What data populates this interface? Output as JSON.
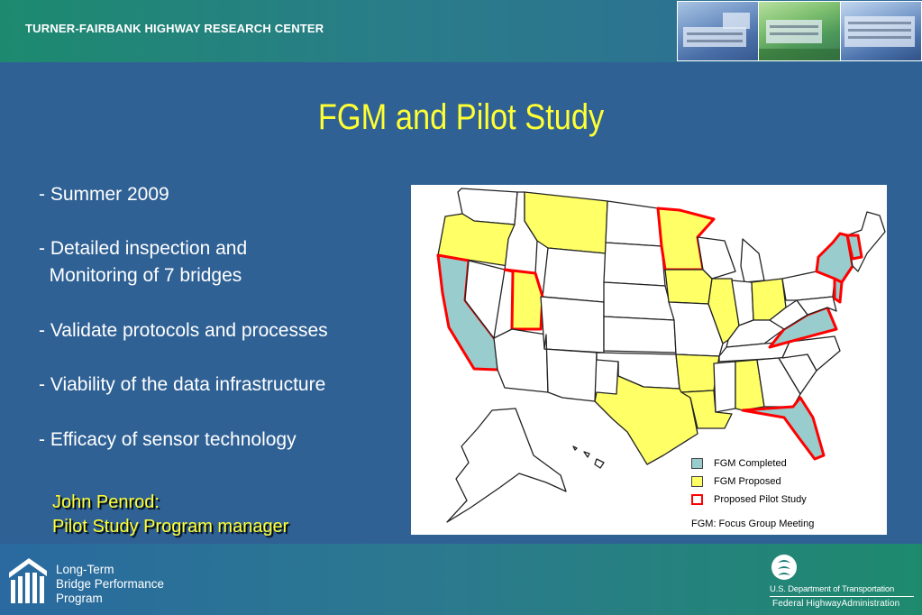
{
  "header": {
    "title": "TURNER-FAIRBANK HIGHWAY RESEARCH CENTER"
  },
  "slide": {
    "title": "FGM and Pilot Study",
    "bullets": [
      "- Summer 2009",
      "- Detailed inspection and",
      "  Monitoring of 7 bridges",
      "- Validate protocols and processes",
      "- Viability of the data infrastructure",
      "- Efficacy of sensor technology"
    ],
    "credit": {
      "name": "John Penrod:",
      "role": "Pilot Study Program manager"
    }
  },
  "map": {
    "legend": [
      {
        "label": "FGM Completed",
        "color": "#99cccc"
      },
      {
        "label": "FGM Proposed",
        "color": "#ffff66"
      },
      {
        "label": "Proposed Pilot Study",
        "color": "#ff0000"
      }
    ],
    "note": "FGM:  Focus Group Meeting"
  },
  "footer": {
    "program_lines": [
      "Long-Term",
      "Bridge Performance",
      "Program"
    ],
    "agency_line1": "U.S. Department of Transportation",
    "agency_line2": "Federal HighwayAdministration"
  },
  "colors": {
    "background": "#2f6195",
    "title_yellow": "#ffff33",
    "completed": "#99cccc",
    "proposed": "#ffff66",
    "pilot": "#ff0000"
  }
}
